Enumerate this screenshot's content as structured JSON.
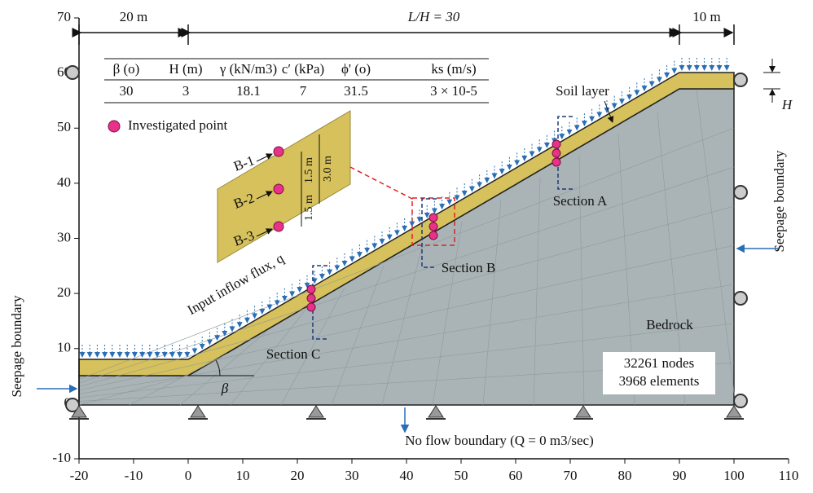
{
  "axes": {
    "xlim": [
      -20,
      110
    ],
    "ylim": [
      -10,
      70
    ],
    "xticks": [
      -20,
      -10,
      0,
      10,
      20,
      30,
      40,
      50,
      60,
      70,
      80,
      90,
      100,
      110
    ],
    "yticks": [
      -10,
      0,
      10,
      20,
      30,
      40,
      50,
      60,
      70
    ]
  },
  "dimensions": {
    "left": "20 m",
    "middle": "L/H = 30",
    "right": "10 m"
  },
  "table": {
    "header": [
      "β (o)",
      "H (m)",
      "γ (kN/m3)",
      "c′ (kPa)",
      "ϕ' (o)",
      "ks (m/s)"
    ],
    "row": [
      "30",
      "3",
      "18.1",
      "7",
      "31.5",
      "3 × 10-5"
    ]
  },
  "legend": "Investigated point",
  "inset": {
    "points": [
      "B-1",
      "B-2",
      "B-3"
    ],
    "spacings": [
      "1.5 m",
      "1.5 m"
    ],
    "thickness": "3.0 m"
  },
  "labels": {
    "soil_layer": "Soil layer",
    "sections": [
      "Section A",
      "Section B",
      "Section C"
    ],
    "inflow": "Input inflow flux, q",
    "seepage_left": "Seepage boundary",
    "seepage_right": "Seepage boundary",
    "bedrock": "Bedrock",
    "nodes": "32261 nodes",
    "elements": "3968 elements",
    "no_flow": "No flow boundary (Q = 0 m3/sec)",
    "beta": "β",
    "H": "H"
  }
}
